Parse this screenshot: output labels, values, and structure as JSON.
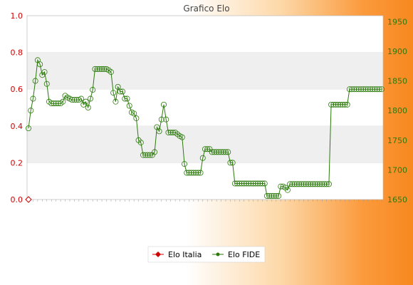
{
  "chart_data": {
    "type": "line",
    "title": "Grafico Elo",
    "xlabel": "",
    "ylabel": "",
    "left_axis": {
      "ticks": [
        "0.0",
        "0.2",
        "0.4",
        "0.6",
        "0.8",
        "1.0"
      ],
      "range": [
        0,
        1
      ],
      "color": "#d10000"
    },
    "right_axis": {
      "ticks": [
        "1650",
        "1700",
        "1750",
        "1800",
        "1850",
        "1900",
        "1950"
      ],
      "range": [
        1650,
        1960
      ],
      "color": "#2b7a0b"
    },
    "grid": "horizontal bands",
    "legend": {
      "placement": "bottom-center",
      "entries": [
        "Elo Italia",
        "Elo FIDE"
      ]
    },
    "series": [
      {
        "name": "Elo Italia",
        "axis": "left",
        "color": "#d10000",
        "values": [
          0
        ]
      },
      {
        "name": "Elo FIDE",
        "axis": "right",
        "color": "#2b7a0b",
        "values": [
          1770,
          1800,
          1820,
          1850,
          1885,
          1878,
          1860,
          1865,
          1845,
          1815,
          1812,
          1812,
          1812,
          1812,
          1812,
          1815,
          1825,
          1822,
          1820,
          1818,
          1818,
          1818,
          1818,
          1820,
          1810,
          1815,
          1805,
          1820,
          1835,
          1870,
          1870,
          1870,
          1870,
          1870,
          1870,
          1868,
          1865,
          1830,
          1815,
          1840,
          1832,
          1832,
          1820,
          1820,
          1808,
          1797,
          1795,
          1787,
          1750,
          1746,
          1725,
          1725,
          1725,
          1725,
          1725,
          1730,
          1772,
          1765,
          1785,
          1810,
          1785,
          1763,
          1763,
          1763,
          1763,
          1760,
          1757,
          1755,
          1710,
          1695,
          1695,
          1695,
          1695,
          1695,
          1695,
          1695,
          1720,
          1735,
          1735,
          1735,
          1730,
          1730,
          1730,
          1730,
          1730,
          1730,
          1730,
          1730,
          1712,
          1712,
          1677,
          1677,
          1677,
          1677,
          1677,
          1677,
          1677,
          1677,
          1677,
          1677,
          1677,
          1677,
          1677,
          1677,
          1656,
          1656,
          1656,
          1656,
          1656,
          1656,
          1672,
          1672,
          1670,
          1666,
          1676,
          1676,
          1676,
          1676,
          1676,
          1676,
          1676,
          1676,
          1676,
          1676,
          1676,
          1676,
          1676,
          1676,
          1676,
          1676,
          1676,
          1676,
          1810,
          1810,
          1810,
          1810,
          1810,
          1810,
          1810,
          1810,
          1836,
          1836,
          1836,
          1836,
          1836,
          1836,
          1836,
          1836,
          1836,
          1836,
          1836,
          1836,
          1836,
          1836,
          1836
        ]
      }
    ]
  }
}
